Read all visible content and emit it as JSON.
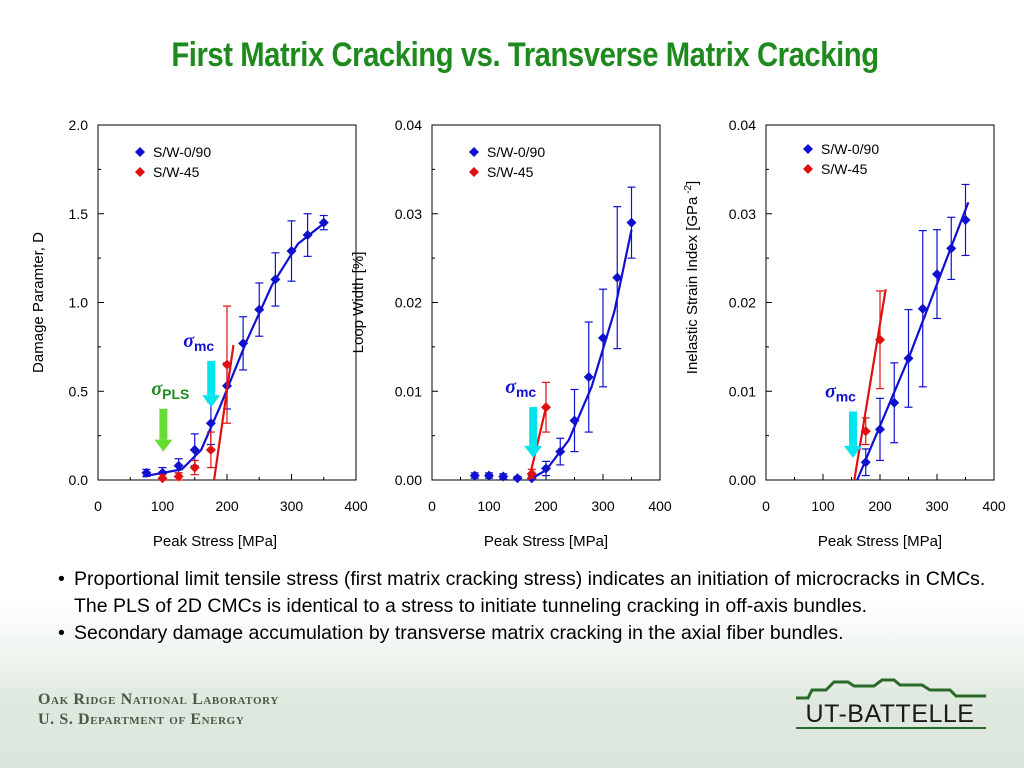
{
  "title": "First Matrix Cracking vs. Transverse Matrix Cracking",
  "bullets": [
    "Proportional limit tensile stress (first matrix cracking stress) indicates an initiation of microcracks in CMCs. The PLS of 2D CMCs is identical to a stress to initiate tunneling cracking in off-axis bundles.",
    "Secondary damage accumulation by transverse matrix cracking in the axial fiber bundles."
  ],
  "footer": {
    "org_line1": "Oak Ridge National Laboratory",
    "org_line2": "U. S. Department of Energy",
    "logo_text": "UT-BATTELLE"
  },
  "colors": {
    "title": "#1e8a1e",
    "series1": "#1010d0",
    "series2": "#e01010",
    "arrow_mc": "#00e5ee",
    "arrow_pls": "#66dd33"
  },
  "chart_data": [
    {
      "type": "scatter",
      "xlabel": "Peak Stress [MPa]",
      "ylabel": "Damage Paramter, D",
      "xlim": [
        0,
        400
      ],
      "ylim": [
        0,
        2
      ],
      "xticks": [
        "0",
        "100",
        "200",
        "300",
        "400"
      ],
      "yticks": [
        "0.0",
        "0.5",
        "1.0",
        "1.5",
        "2.0"
      ],
      "legend": "top-left",
      "series": [
        {
          "name": "S/W-0/90",
          "x": [
            75,
            100,
            125,
            150,
            175,
            200,
            225,
            250,
            275,
            300,
            325,
            350
          ],
          "y": [
            0.04,
            0.04,
            0.08,
            0.17,
            0.32,
            0.53,
            0.77,
            0.96,
            1.13,
            1.29,
            1.38,
            1.45
          ],
          "err": [
            0.02,
            0.03,
            0.04,
            0.09,
            0.12,
            0.13,
            0.15,
            0.15,
            0.15,
            0.17,
            0.12,
            0.04
          ],
          "fit": [
            [
              70,
              0.02
            ],
            [
              130,
              0.06
            ],
            [
              160,
              0.17
            ],
            [
              190,
              0.42
            ],
            [
              230,
              0.78
            ],
            [
              270,
              1.1
            ],
            [
              310,
              1.33
            ],
            [
              355,
              1.46
            ]
          ]
        },
        {
          "name": "S/W-45",
          "x": [
            100,
            125,
            150,
            175,
            200
          ],
          "y": [
            0.01,
            0.02,
            0.07,
            0.17,
            0.65
          ],
          "err": [
            0.02,
            0.02,
            0.04,
            0.1,
            0.33
          ],
          "fit": [
            [
              180,
              0.0
            ],
            [
              210,
              0.76
            ]
          ]
        }
      ],
      "annotations": [
        {
          "label": "σ",
          "sub": "mc",
          "x": 160,
          "y": 0.75,
          "arrow_color": "#00e5ee",
          "arrow_to": 0.41
        },
        {
          "label": "σ",
          "sub": "PLS",
          "x": 120,
          "y": 0.48,
          "arrow_color": "#66dd33",
          "arrow_to": 0.16
        }
      ]
    },
    {
      "type": "scatter",
      "xlabel": "Peak Stress [MPa]",
      "ylabel": "Loop Width [%]",
      "xlim": [
        0,
        400
      ],
      "ylim": [
        0,
        0.04
      ],
      "xticks": [
        "0",
        "100",
        "200",
        "300",
        "400"
      ],
      "yticks": [
        "0.00",
        "0.01",
        "0.02",
        "0.03",
        "0.04"
      ],
      "legend": "top-left",
      "series": [
        {
          "name": "S/W-0/90",
          "x": [
            75,
            100,
            125,
            150,
            175,
            200,
            225,
            250,
            275,
            300,
            325,
            350
          ],
          "y": [
            0.0005,
            0.0005,
            0.0004,
            0.0002,
            0.0002,
            0.0013,
            0.0032,
            0.0067,
            0.0116,
            0.016,
            0.0228,
            0.029
          ],
          "err": [
            0.0003,
            0.0003,
            0.0003,
            0.0002,
            0.0003,
            0.0008,
            0.0015,
            0.0035,
            0.0062,
            0.0055,
            0.008,
            0.004
          ],
          "fit": [
            [
              170,
              0.0
            ],
            [
              200,
              0.0011
            ],
            [
              240,
              0.0045
            ],
            [
              280,
              0.0105
            ],
            [
              320,
              0.019
            ],
            [
              350,
              0.0282
            ]
          ]
        },
        {
          "name": "S/W-45",
          "x": [
            175,
            200
          ],
          "y": [
            0.0007,
            0.0082
          ],
          "err": [
            0.0005,
            0.0028
          ],
          "fit": [
            [
              170,
              0.0
            ],
            [
              200,
              0.0082
            ]
          ]
        }
      ],
      "annotations": [
        {
          "label": "σ",
          "sub": "mc",
          "x": 160,
          "y": 0.0098,
          "arrow_color": "#00e5ee",
          "arrow_to": 0.0025
        }
      ]
    },
    {
      "type": "scatter",
      "xlabel": "Peak Stress [MPa]",
      "ylabel": "Inelastic Strain Index [GPa",
      "ylabel_sup": "-2",
      "ylabel_end": "]",
      "xlim": [
        0,
        400
      ],
      "ylim": [
        0,
        0.04
      ],
      "xticks": [
        "0",
        "100",
        "200",
        "300",
        "400"
      ],
      "yticks": [
        "0.00",
        "0.01",
        "0.02",
        "0.03",
        "0.04"
      ],
      "legend": "top-left",
      "series": [
        {
          "name": "S/W-0/90",
          "x": [
            175,
            200,
            225,
            250,
            275,
            300,
            325,
            350
          ],
          "y": [
            0.002,
            0.0057,
            0.0087,
            0.0137,
            0.0193,
            0.0232,
            0.0261,
            0.0293
          ],
          "err": [
            0.0015,
            0.0035,
            0.0045,
            0.0055,
            0.0088,
            0.005,
            0.0035,
            0.004
          ],
          "fit": [
            [
              160,
              0.0
            ],
            [
              250,
              0.0137
            ],
            [
              355,
              0.0313
            ]
          ]
        },
        {
          "name": "S/W-45",
          "x": [
            175,
            200
          ],
          "y": [
            0.0055,
            0.0158
          ],
          "err": [
            0.0015,
            0.0055
          ],
          "fit": [
            [
              155,
              0.0
            ],
            [
              210,
              0.0215
            ]
          ]
        }
      ],
      "annotations": [
        {
          "label": "σ",
          "sub": "mc",
          "x": 135,
          "y": 0.0093,
          "arrow_color": "#00e5ee",
          "arrow_to": 0.0025
        }
      ]
    }
  ]
}
